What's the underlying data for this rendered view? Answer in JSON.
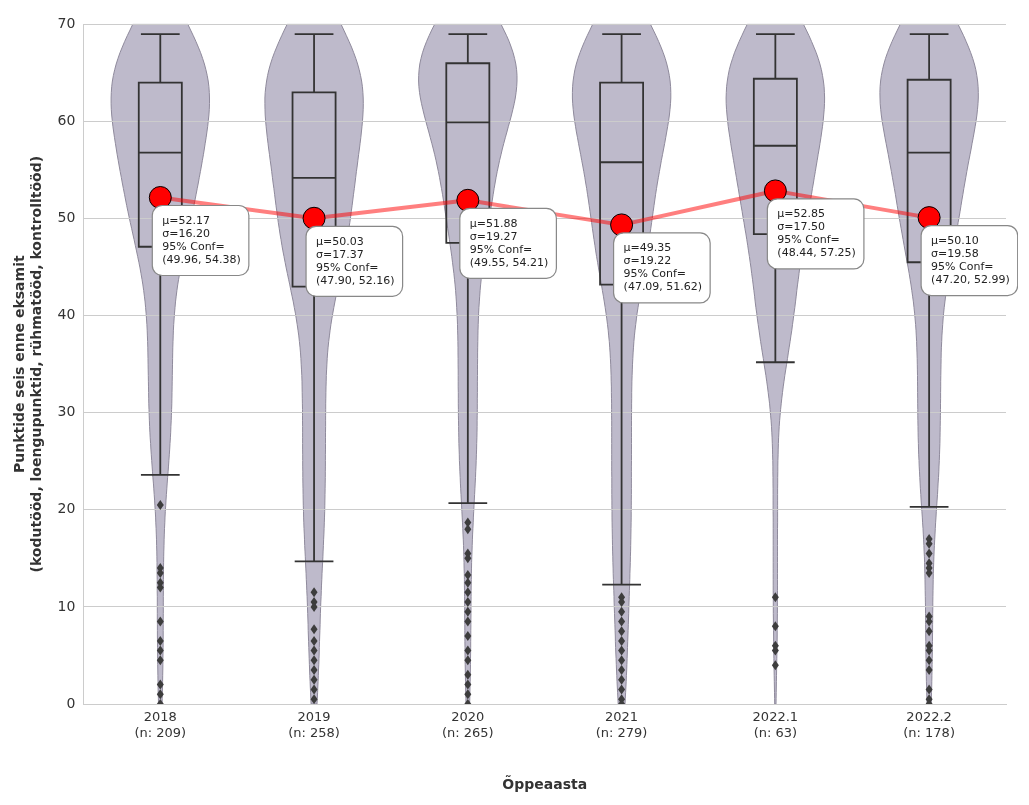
{
  "chart_data": {
    "type": "box",
    "xlabel": "Õppeaasta",
    "ylabel": "Punktide seis enne eksamit\n(kodutööd, loengupunktid, rühmatööd, kontrolltööd)",
    "categories": [
      "2018\n(n: 209)",
      "2019\n(n: 258)",
      "2020\n(n: 265)",
      "2021\n(n: 279)",
      "2022.1\n(n: 63)",
      "2022.2\n(n: 178)"
    ],
    "ylim": [
      0,
      70
    ],
    "yticks": [
      0,
      10,
      20,
      30,
      40,
      50,
      60,
      70
    ],
    "grid": "y",
    "boxes": [
      {
        "low": 23.6,
        "q1": 47.1,
        "median": 56.8,
        "q3": 64,
        "high": 69,
        "outliers": [
          20.5,
          14,
          13.5,
          12.5,
          12,
          8.5,
          6.5,
          5.5,
          4.5,
          2,
          1,
          0
        ]
      },
      {
        "low": 14.7,
        "q1": 43,
        "median": 54.2,
        "q3": 63,
        "high": 69,
        "outliers": [
          11.5,
          10.5,
          10,
          7.7,
          6.5,
          5.5,
          4.5,
          3.5,
          2.5,
          1.5,
          0.5
        ]
      },
      {
        "low": 20.7,
        "q1": 47.5,
        "median": 59.9,
        "q3": 66,
        "high": 69,
        "outliers": [
          18.7,
          18,
          15.5,
          15,
          13.3,
          12.5,
          11.5,
          10.5,
          9.5,
          8.5,
          7,
          5.5,
          4.5,
          3,
          2,
          1,
          0
        ]
      },
      {
        "low": 12.3,
        "q1": 43.2,
        "median": 55.8,
        "q3": 64,
        "high": 69,
        "outliers": [
          11,
          10.5,
          9.5,
          8.5,
          7.5,
          6.5,
          5.5,
          4.5,
          3.5,
          2.5,
          1.5,
          0.5,
          0
        ]
      },
      {
        "low": 35.2,
        "q1": 48.4,
        "median": 57.5,
        "q3": 64.4,
        "high": 69,
        "outliers": [
          11,
          8,
          6,
          5.5,
          4
        ]
      },
      {
        "low": 20.3,
        "q1": 45.5,
        "median": 56.8,
        "q3": 64.3,
        "high": 69,
        "outliers": [
          17,
          16.5,
          15.5,
          14.5,
          14,
          13.5,
          9,
          8.5,
          7.5,
          6,
          5.5,
          4.5,
          3.5,
          1.5,
          0.5,
          0
        ]
      }
    ],
    "series": [
      {
        "type": "line",
        "color": "#ff0000",
        "marker": "circle",
        "values": [
          52.17,
          50.03,
          51.88,
          49.35,
          52.85,
          50.1
        ]
      }
    ],
    "annotations": [
      {
        "text": "μ=52.17\nσ=16.20\n95% Conf=\n(49.96, 54.38)",
        "x": "2018\n(n: 209)",
        "y": 52.17
      },
      {
        "text": "μ=50.03\nσ=17.37\n95% Conf=\n(47.90, 52.16)",
        "x": "2019\n(n: 258)",
        "y": 50.03
      },
      {
        "text": "μ=51.88\nσ=19.27\n95% Conf=\n(49.55, 54.21)",
        "x": "2020\n(n: 265)",
        "y": 51.88
      },
      {
        "text": "μ=49.35\nσ=19.22\n95% Conf=\n(47.09, 51.62)",
        "x": "2021\n(n: 279)",
        "y": 49.35
      },
      {
        "text": "μ=52.85\nσ=17.50\n95% Conf=\n(48.44, 57.25)",
        "x": "2022.1\n(n: 63)",
        "y": 52.85
      },
      {
        "text": "μ=50.10\nσ=19.58\n95% Conf=\n(47.20, 52.99)",
        "x": "2022.2\n(n: 178)",
        "y": 50.1
      }
    ]
  }
}
